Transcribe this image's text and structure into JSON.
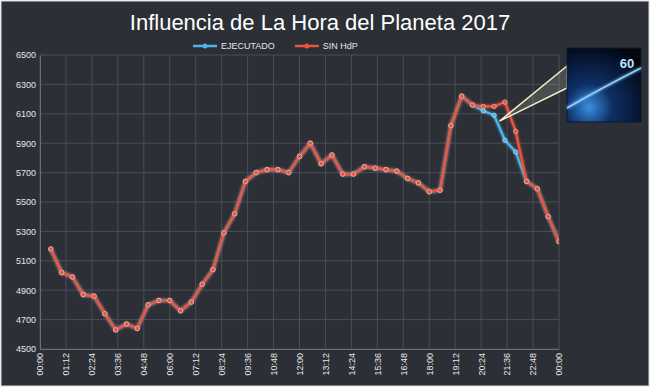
{
  "chart_data": {
    "type": "line",
    "title": "Influencia de La Hora del Planeta 2017",
    "x": [
      0.5,
      1,
      1.5,
      2,
      2.5,
      3,
      3.5,
      4,
      4.5,
      5,
      5.5,
      6,
      6.5,
      7,
      7.5,
      8,
      8.5,
      9,
      9.5,
      10,
      10.5,
      11,
      11.5,
      12,
      12.5,
      13,
      13.5,
      14,
      14.5,
      15,
      15.5,
      16,
      16.5,
      17,
      17.5,
      18,
      18.5,
      19,
      19.5,
      20,
      20.5,
      21,
      21.5,
      22,
      22.5,
      23,
      23.5,
      24
    ],
    "series": [
      {
        "name": "EJECUTADO",
        "color": "#4fb4ec",
        "marker": "circle",
        "values": [
          5180,
          5020,
          4990,
          4870,
          4860,
          4740,
          4630,
          4670,
          4640,
          4800,
          4830,
          4830,
          4760,
          4820,
          4940,
          5040,
          5290,
          5420,
          5640,
          5700,
          5720,
          5720,
          5700,
          5810,
          5900,
          5760,
          5820,
          5690,
          5690,
          5740,
          5730,
          5720,
          5710,
          5660,
          5630,
          5570,
          5580,
          6020,
          6220,
          6160,
          6120,
          6090,
          5920,
          5840,
          5640,
          5590,
          5400,
          5230
        ]
      },
      {
        "name": "SIN HdP",
        "color": "#e8563c",
        "marker": "circle",
        "values": [
          5180,
          5020,
          4990,
          4870,
          4860,
          4740,
          4630,
          4670,
          4640,
          4800,
          4830,
          4830,
          4760,
          4820,
          4940,
          5040,
          5290,
          5420,
          5640,
          5700,
          5720,
          5720,
          5700,
          5810,
          5900,
          5760,
          5820,
          5690,
          5690,
          5740,
          5730,
          5720,
          5710,
          5660,
          5630,
          5570,
          5580,
          6020,
          6220,
          6160,
          6150,
          6150,
          6180,
          5980,
          5640,
          5590,
          5400,
          5230
        ]
      }
    ],
    "xlim": [
      0,
      24
    ],
    "xticks": [
      {
        "value": 0,
        "label": "00:00"
      },
      {
        "value": 1.2,
        "label": "01:12"
      },
      {
        "value": 2.4,
        "label": "02:24"
      },
      {
        "value": 3.6,
        "label": "03:36"
      },
      {
        "value": 4.8,
        "label": "04:48"
      },
      {
        "value": 6,
        "label": "06:00"
      },
      {
        "value": 7.2,
        "label": "07:12"
      },
      {
        "value": 8.4,
        "label": "08:24"
      },
      {
        "value": 9.6,
        "label": "09:36"
      },
      {
        "value": 10.8,
        "label": "10:48"
      },
      {
        "value": 12,
        "label": "12:00"
      },
      {
        "value": 13.2,
        "label": "13:12"
      },
      {
        "value": 14.4,
        "label": "14:24"
      },
      {
        "value": 15.6,
        "label": "15:36"
      },
      {
        "value": 16.8,
        "label": "16:48"
      },
      {
        "value": 18,
        "label": "18:00"
      },
      {
        "value": 19.2,
        "label": "19:12"
      },
      {
        "value": 20.4,
        "label": "20:24"
      },
      {
        "value": 21.6,
        "label": "21:36"
      },
      {
        "value": 22.8,
        "label": "22:48"
      },
      {
        "value": 24,
        "label": "00:00"
      }
    ],
    "ylim": [
      4500,
      6500
    ],
    "yticks": [
      4500,
      4700,
      4900,
      5100,
      5300,
      5500,
      5700,
      5900,
      6100,
      6300,
      6500
    ],
    "grid": true,
    "legend": "top",
    "annotations": [
      {
        "text": "60",
        "x": 21.25,
        "y": 6050
      }
    ]
  }
}
